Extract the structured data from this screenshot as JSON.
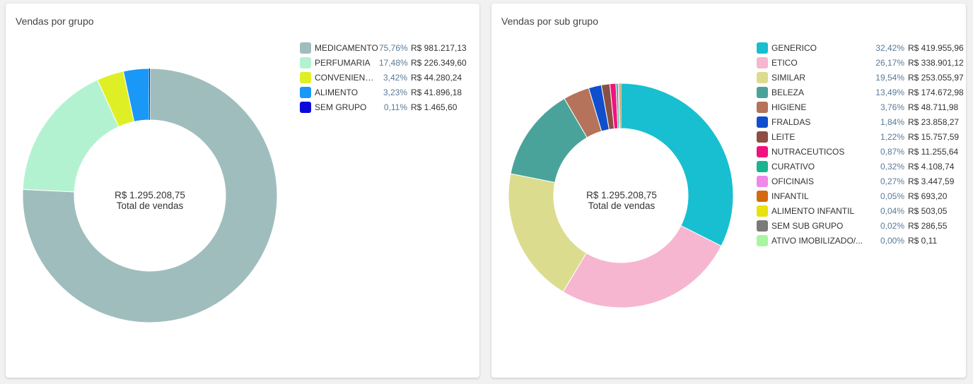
{
  "chart_data": [
    {
      "type": "pie",
      "title": "Vendas por grupo",
      "center": {
        "value": "R$ 1.295.208,75",
        "caption": "Total de vendas"
      },
      "slices": [
        {
          "label": "MEDICAMENTO",
          "percent_text": "75,76%",
          "value_text": "R$ 981.217,13",
          "value": 981217.13,
          "color": "#a0bdbd"
        },
        {
          "label": "PERFUMARIA",
          "percent_text": "17,48%",
          "value_text": "R$ 226.349,60",
          "value": 226349.6,
          "color": "#b3f2d0"
        },
        {
          "label": "CONVENIENCIA",
          "percent_text": "3,42%",
          "value_text": "R$ 44.280,24",
          "value": 44280.24,
          "color": "#dfef26"
        },
        {
          "label": "ALIMENTO",
          "percent_text": "3,23%",
          "value_text": "R$ 41.896,18",
          "value": 41896.18,
          "color": "#1a98f7"
        },
        {
          "label": "SEM GRUPO",
          "percent_text": "0,11%",
          "value_text": "R$ 1.465,60",
          "value": 1465.6,
          "color": "#0a0adc"
        }
      ]
    },
    {
      "type": "pie",
      "title": "Vendas por sub grupo",
      "center": {
        "value": "R$ 1.295.208,75",
        "caption": "Total de vendas"
      },
      "slices": [
        {
          "label": "GENERICO",
          "percent_text": "32,42%",
          "value_text": "R$ 419.955,96",
          "value": 419955.96,
          "color": "#18bfd0"
        },
        {
          "label": "ETICO",
          "percent_text": "26,17%",
          "value_text": "R$ 338.901,12",
          "value": 338901.12,
          "color": "#f6b6d0"
        },
        {
          "label": "SIMILAR",
          "percent_text": "19,54%",
          "value_text": "R$ 253.055,97",
          "value": 253055.97,
          "color": "#dcdc8e"
        },
        {
          "label": "BELEZA",
          "percent_text": "13,49%",
          "value_text": "R$ 174.672,98",
          "value": 174672.98,
          "color": "#4aa39a"
        },
        {
          "label": "HIGIENE",
          "percent_text": "3,76%",
          "value_text": "R$ 48.711,98",
          "value": 48711.98,
          "color": "#b4735a"
        },
        {
          "label": "FRALDAS",
          "percent_text": "1,84%",
          "value_text": "R$ 23.858,27",
          "value": 23858.27,
          "color": "#0f4fcd"
        },
        {
          "label": "LEITE",
          "percent_text": "1,22%",
          "value_text": "R$ 15.757,59",
          "value": 15757.59,
          "color": "#8c4f43"
        },
        {
          "label": "NUTRACEUTICOS",
          "percent_text": "0,87%",
          "value_text": "R$ 11.255,64",
          "value": 11255.64,
          "color": "#f2127f"
        },
        {
          "label": "CURATIVO",
          "percent_text": "0,32%",
          "value_text": "R$ 4.108,74",
          "value": 4108.74,
          "color": "#1ab58e"
        },
        {
          "label": "OFICINAIS",
          "percent_text": "0,27%",
          "value_text": "R$ 3.447,59",
          "value": 3447.59,
          "color": "#f088e8"
        },
        {
          "label": "INFANTIL",
          "percent_text": "0,05%",
          "value_text": "R$ 693,20",
          "value": 693.2,
          "color": "#d5690e"
        },
        {
          "label": "ALIMENTO INFANTIL",
          "percent_text": "0,04%",
          "value_text": "R$ 503,05",
          "value": 503.05,
          "color": "#e8e20f"
        },
        {
          "label": "SEM SUB GRUPO",
          "percent_text": "0,02%",
          "value_text": "R$ 286,55",
          "value": 286.55,
          "color": "#7a7a7a"
        },
        {
          "label": "ATIVO IMOBILIZADO/...",
          "percent_text": "0,00%",
          "value_text": "R$ 0,11",
          "value": 0.11,
          "color": "#a9f5a0"
        }
      ]
    }
  ]
}
